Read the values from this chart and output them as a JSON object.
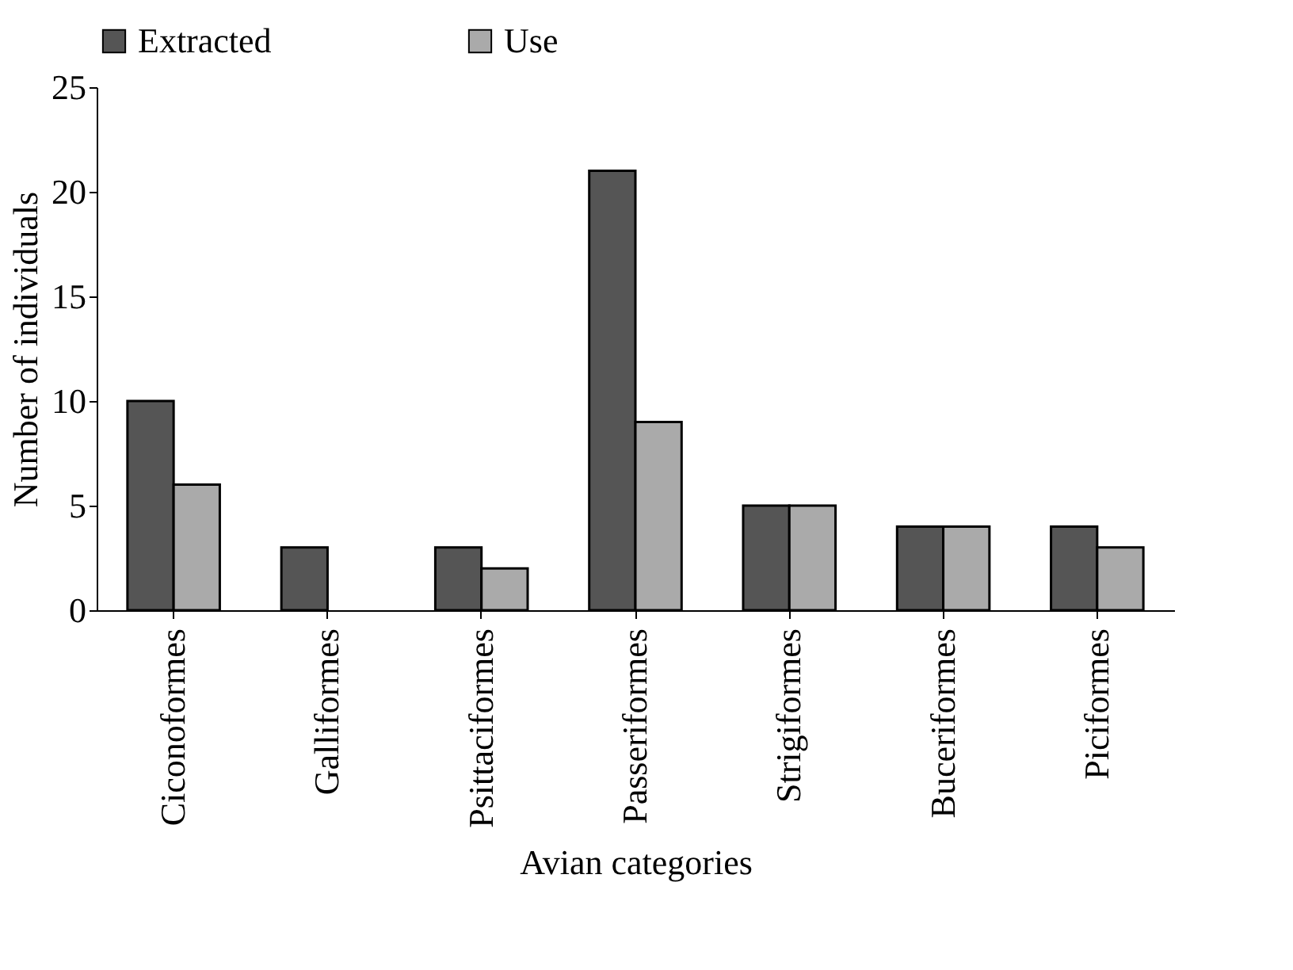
{
  "chart_data": {
    "type": "bar",
    "xlabel": "Avian categories",
    "ylabel": "Number of individuals",
    "categories": [
      "Ciconoformes",
      "Galliformes",
      "Psittaciformes",
      "Passeriformes",
      "Strigiformes",
      "Buceriformes",
      "Piciformes"
    ],
    "series": [
      {
        "name": "Extracted",
        "color": "#555555",
        "values": [
          10,
          3,
          3,
          21,
          5,
          4,
          4
        ]
      },
      {
        "name": "Use",
        "color": "#aaaaaa",
        "values": [
          6,
          null,
          2,
          9,
          5,
          4,
          3
        ]
      }
    ],
    "ylim": [
      0,
      25
    ],
    "yticks": [
      0,
      5,
      10,
      15,
      20,
      25
    ],
    "grid": false,
    "legend": "top"
  }
}
